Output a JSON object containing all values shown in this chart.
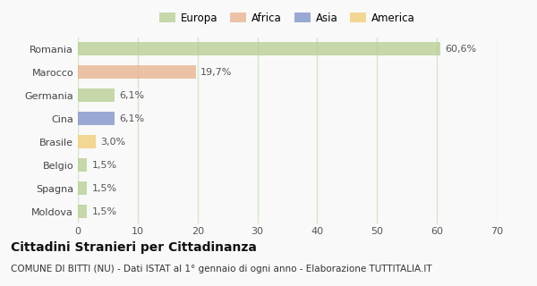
{
  "categories": [
    "Romania",
    "Marocco",
    "Germania",
    "Cina",
    "Brasile",
    "Belgio",
    "Spagna",
    "Moldova"
  ],
  "values": [
    60.6,
    19.7,
    6.1,
    6.1,
    3.0,
    1.5,
    1.5,
    1.5
  ],
  "labels": [
    "60,6%",
    "19,7%",
    "6,1%",
    "6,1%",
    "3,0%",
    "1,5%",
    "1,5%",
    "1,5%"
  ],
  "bar_colors": [
    "#b5cc8e",
    "#e8b08a",
    "#b5cc8e",
    "#7b8ec8",
    "#f0cc70",
    "#b5cc8e",
    "#b5cc8e",
    "#b5cc8e"
  ],
  "legend_labels": [
    "Europa",
    "Africa",
    "Asia",
    "America"
  ],
  "legend_colors": [
    "#b5cc8e",
    "#e8b08a",
    "#7b8ec8",
    "#f0cc70"
  ],
  "xlim": [
    0,
    70
  ],
  "xticks": [
    0,
    10,
    20,
    30,
    40,
    50,
    60,
    70
  ],
  "title": "Cittadini Stranieri per Cittadinanza",
  "subtitle": "COMUNE DI BITTI (NU) - Dati ISTAT al 1° gennaio di ogni anno - Elaborazione TUTTITALIA.IT",
  "background_color": "#f9f9f9",
  "grid_color": "#d5e5c8",
  "title_fontsize": 10,
  "subtitle_fontsize": 7.5,
  "label_fontsize": 8,
  "tick_fontsize": 8
}
